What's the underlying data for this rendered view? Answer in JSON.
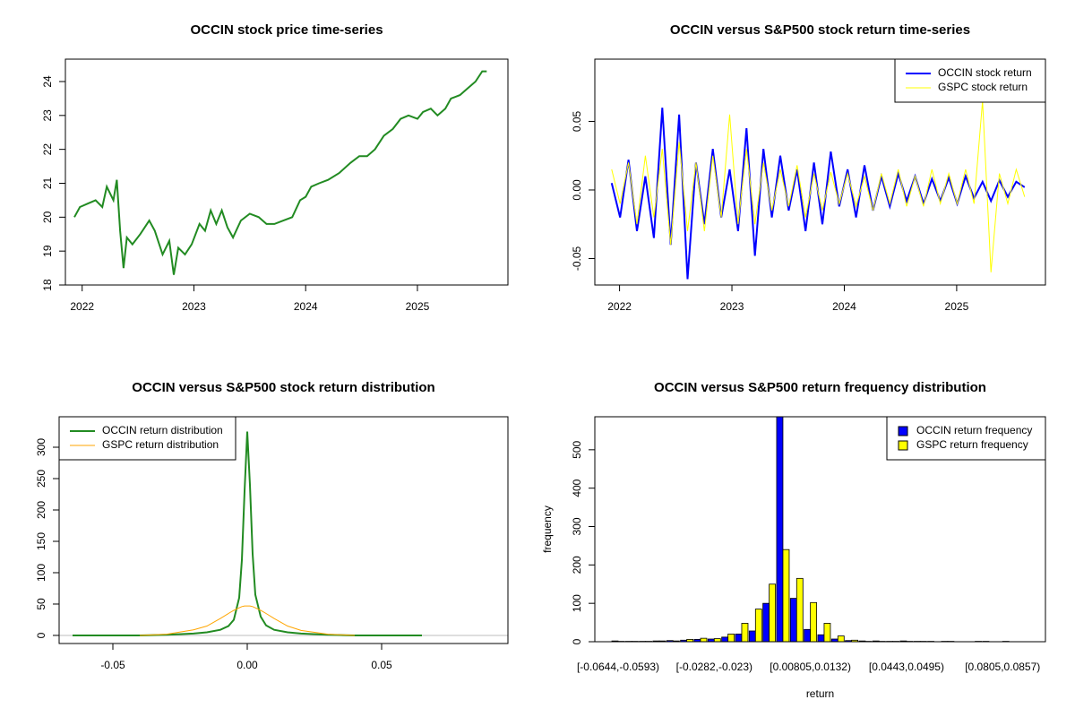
{
  "chart_data": [
    {
      "type": "line",
      "title": "OCCIN stock price time-series",
      "x": [
        2021.93,
        2021.98,
        2022.05,
        2022.12,
        2022.18,
        2022.22,
        2022.28,
        2022.31,
        2022.34,
        2022.37,
        2022.4,
        2022.45,
        2022.52,
        2022.6,
        2022.65,
        2022.72,
        2022.78,
        2022.82,
        2022.86,
        2022.92,
        2022.98,
        2023.05,
        2023.1,
        2023.15,
        2023.2,
        2023.25,
        2023.3,
        2023.35,
        2023.42,
        2023.5,
        2023.58,
        2023.65,
        2023.72,
        2023.8,
        2023.88,
        2023.95,
        2024.0,
        2024.05,
        2024.12,
        2024.2,
        2024.3,
        2024.4,
        2024.48,
        2024.55,
        2024.62,
        2024.7,
        2024.78,
        2024.85,
        2024.92,
        2025.0,
        2025.05,
        2025.12,
        2025.18,
        2025.25,
        2025.3,
        2025.38,
        2025.45,
        2025.52,
        2025.58,
        2025.62
      ],
      "series": [
        {
          "color": "#228B22",
          "values": [
            20.0,
            20.3,
            20.4,
            20.5,
            20.3,
            20.9,
            20.5,
            21.1,
            19.6,
            18.5,
            19.4,
            19.2,
            19.5,
            19.9,
            19.6,
            18.9,
            19.3,
            18.3,
            19.1,
            18.9,
            19.2,
            19.8,
            19.6,
            20.2,
            19.8,
            20.2,
            19.7,
            19.4,
            19.9,
            20.1,
            20.0,
            19.8,
            19.8,
            19.9,
            20.0,
            20.5,
            20.6,
            20.9,
            21.0,
            21.1,
            21.3,
            21.6,
            21.8,
            21.8,
            22.0,
            22.4,
            22.6,
            22.9,
            23.0,
            22.9,
            23.1,
            23.2,
            23.0,
            23.2,
            23.5,
            23.6,
            23.8,
            24.0,
            24.3,
            24.3
          ]
        }
      ],
      "xlim": [
        2021.85,
        2025.81
      ],
      "xticks": [
        2022,
        2023,
        2024,
        2025
      ],
      "ylim": [
        18,
        24.66
      ],
      "yticks": [
        18,
        19,
        20,
        21,
        22,
        23,
        24
      ]
    },
    {
      "type": "line",
      "title": "OCCIN versus S&P500 stock return time-series",
      "x": [
        2021.93,
        2022.005,
        2022.08,
        2022.155,
        2022.23,
        2022.305,
        2022.38,
        2022.455,
        2022.53,
        2022.605,
        2022.68,
        2022.755,
        2022.83,
        2022.905,
        2022.98,
        2023.055,
        2023.13,
        2023.205,
        2023.28,
        2023.355,
        2023.43,
        2023.505,
        2023.58,
        2023.655,
        2023.73,
        2023.805,
        2023.88,
        2023.955,
        2024.03,
        2024.105,
        2024.18,
        2024.255,
        2024.33,
        2024.405,
        2024.48,
        2024.555,
        2024.63,
        2024.705,
        2024.78,
        2024.855,
        2024.93,
        2025.005,
        2025.08,
        2025.155,
        2025.23,
        2025.305,
        2025.38,
        2025.455,
        2025.53,
        2025.605
      ],
      "series": [
        {
          "name": "OCCIN stock return",
          "color": "#0000FF",
          "values": [
            0.005,
            -0.02,
            0.022,
            -0.03,
            0.01,
            -0.035,
            0.06,
            -0.04,
            0.055,
            -0.065,
            0.02,
            -0.025,
            0.03,
            -0.02,
            0.015,
            -0.03,
            0.045,
            -0.048,
            0.03,
            -0.02,
            0.025,
            -0.015,
            0.015,
            -0.03,
            0.02,
            -0.025,
            0.028,
            -0.012,
            0.015,
            -0.02,
            0.018,
            -0.015,
            0.01,
            -0.012,
            0.012,
            -0.008,
            0.01,
            -0.01,
            0.008,
            -0.008,
            0.009,
            -0.01,
            0.01,
            -0.006,
            0.006,
            -0.008,
            0.007,
            -0.005,
            0.006,
            0.002
          ]
        },
        {
          "name": "GSPC stock return",
          "color": "#FFFF00",
          "values": [
            0.015,
            -0.01,
            0.02,
            -0.025,
            0.025,
            -0.02,
            0.03,
            -0.04,
            0.035,
            -0.03,
            0.02,
            -0.03,
            0.025,
            -0.02,
            0.055,
            -0.025,
            0.03,
            -0.025,
            0.02,
            -0.015,
            0.015,
            -0.012,
            0.018,
            -0.02,
            0.012,
            -0.015,
            0.013,
            -0.01,
            0.012,
            -0.012,
            0.01,
            -0.015,
            0.012,
            -0.01,
            0.015,
            -0.012,
            0.01,
            -0.012,
            0.015,
            -0.01,
            0.012,
            -0.01,
            0.015,
            -0.01,
            0.065,
            -0.06,
            0.012,
            -0.01,
            0.015,
            -0.005
          ]
        }
      ],
      "legend": "topright",
      "xlim": [
        2021.78,
        2025.79
      ],
      "xticks": [
        2022,
        2023,
        2024,
        2025
      ],
      "ylim": [
        -0.0693,
        0.0954
      ],
      "yticks": [
        -0.05,
        {
          "value": 0,
          "label": "0.00"
        },
        0.05
      ]
    },
    {
      "type": "line",
      "title": "OCCIN versus S&P500 stock return distribution",
      "x": [
        -0.065,
        -0.05,
        -0.04,
        -0.03,
        -0.02,
        -0.015,
        -0.01,
        -0.007,
        -0.005,
        -0.003,
        -0.002,
        -0.001,
        0,
        0.001,
        0.002,
        0.003,
        0.005,
        0.007,
        0.01,
        0.015,
        0.02,
        0.03,
        0.04,
        0.05,
        0.065
      ],
      "series": [
        {
          "name": "OCCIN return distribution",
          "color": "#228B22",
          "values": [
            0,
            0,
            0,
            1,
            3,
            5,
            9,
            15,
            25,
            60,
            120,
            230,
            325,
            240,
            130,
            65,
            30,
            16,
            9,
            5,
            3,
            1,
            0,
            0,
            0
          ]
        },
        {
          "name": "GSPC return distribution",
          "color": "#FFA500",
          "values": [
            null,
            null,
            0,
            2,
            9,
            15,
            27,
            35,
            40,
            44,
            46,
            47,
            47,
            47,
            46,
            44,
            40,
            35,
            27,
            15,
            8,
            2,
            0,
            null,
            null
          ]
        }
      ],
      "legend": "topleft",
      "xlim": [
        -0.07,
        0.097
      ],
      "xticks": [
        -0.05,
        {
          "value": 0,
          "label": "0.00"
        },
        0.05
      ],
      "ylim": [
        -12.9,
        348.6
      ],
      "yticks": [
        0,
        50,
        100,
        150,
        200,
        250,
        300
      ]
    },
    {
      "type": "bar",
      "title": "OCCIN versus S&P500 return frequency distribution",
      "x_label": "return",
      "y_label": "frequency",
      "categories": [
        "[-0.0644,-0.0593)",
        null,
        null,
        null,
        null,
        null,
        null,
        "[-0.0282,-0.023)",
        null,
        null,
        null,
        null,
        null,
        null,
        "[0.00805,0.0132)",
        null,
        null,
        null,
        null,
        null,
        null,
        "[0.0443,0.0495)",
        null,
        null,
        null,
        null,
        null,
        null,
        "[0.0805,0.0857)"
      ],
      "series": [
        {
          "name": "OCCIN return frequency",
          "color": "#0000FF",
          "values": [
            2,
            1,
            1,
            2,
            3,
            4,
            6,
            7,
            12,
            20,
            28,
            100,
            586,
            113,
            32,
            18,
            7,
            3,
            2,
            2,
            1,
            2,
            1,
            1,
            1,
            0,
            0,
            1,
            0
          ]
        },
        {
          "name": "GSPC return frequency",
          "color": "#FFFF00",
          "values": [
            1,
            1,
            1,
            2,
            2,
            6,
            9,
            8,
            20,
            48,
            85,
            150,
            240,
            165,
            102,
            48,
            15,
            4,
            1,
            1,
            1,
            1,
            1,
            0,
            1,
            0,
            1,
            0,
            1
          ]
        }
      ],
      "legend": "topright",
      "ylim": [
        0,
        586
      ],
      "yticks": [
        0,
        100,
        200,
        300,
        400,
        500
      ]
    }
  ]
}
